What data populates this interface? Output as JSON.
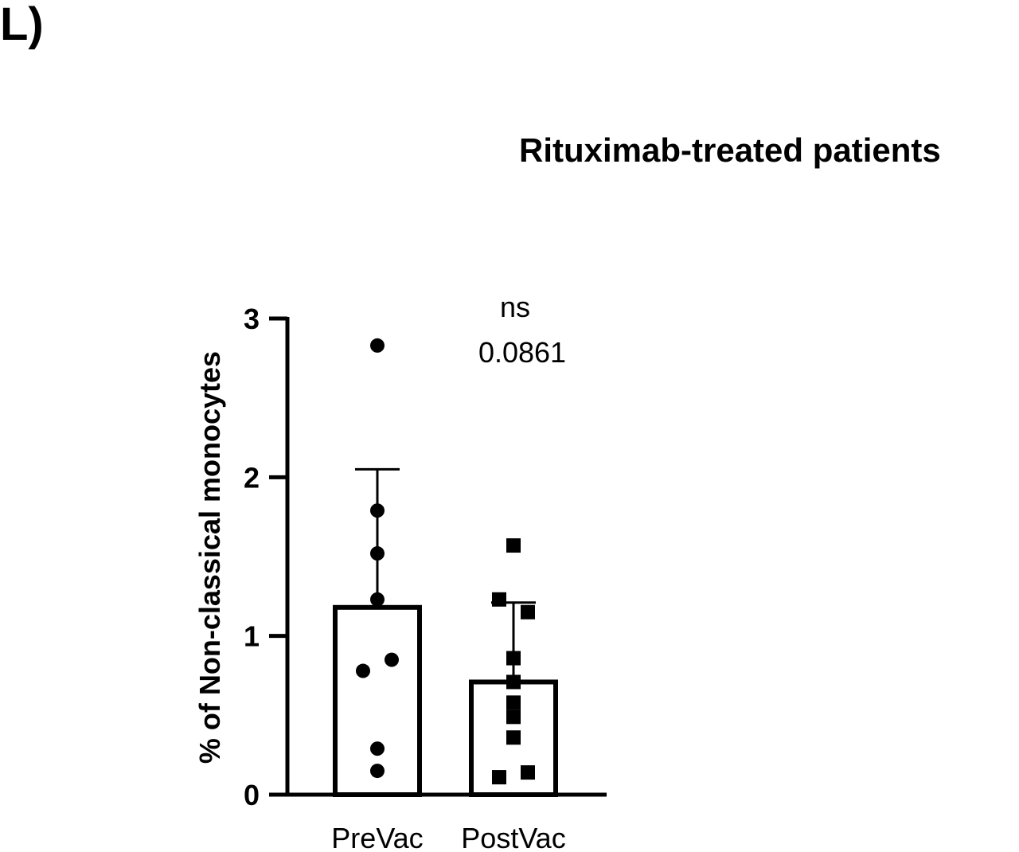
{
  "panel_label": "L)",
  "chart_data": {
    "type": "bar",
    "title": "Rituximab-treated patients",
    "xlabel": "",
    "ylabel": "% of Non-classical monocytes",
    "categories": [
      "PreVac",
      "PostVac"
    ],
    "ylim": [
      0,
      3
    ],
    "yticks": [
      0,
      1,
      2,
      3
    ],
    "grid": false,
    "bars": [
      {
        "category": "PreVac",
        "mean": 1.18,
        "error_upper": 2.05
      },
      {
        "category": "PostVac",
        "mean": 0.71,
        "error_upper": 1.21
      }
    ],
    "points": [
      {
        "category": "PreVac",
        "marker": "circle",
        "values": [
          2.83,
          1.79,
          1.52,
          1.23,
          0.85,
          0.78,
          0.29,
          0.15
        ]
      },
      {
        "category": "PostVac",
        "marker": "square",
        "values": [
          1.57,
          1.23,
          1.15,
          0.86,
          0.71,
          0.58,
          0.49,
          0.36,
          0.14,
          0.11
        ]
      }
    ],
    "annotations": [
      {
        "text": "ns"
      },
      {
        "text": "0.0861"
      }
    ]
  }
}
